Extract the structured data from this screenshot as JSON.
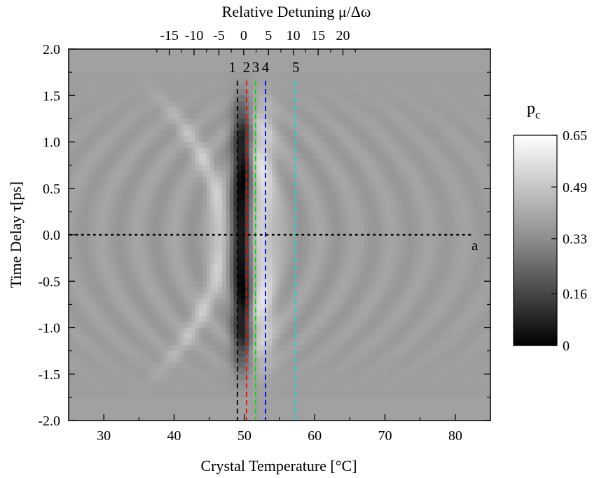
{
  "chart_data": {
    "type": "heatmap",
    "xlabel": "Crystal Temperature [°C]",
    "x2label": "Relative Detuning μ/Δω",
    "ylabel": "Time Delay τ[ps]",
    "xlim": [
      25,
      85
    ],
    "ylim": [
      -2.0,
      2.0
    ],
    "x_ticks": [
      "30",
      "40",
      "50",
      "60",
      "70",
      "80"
    ],
    "x_tick_values": [
      30,
      40,
      50,
      60,
      70,
      80
    ],
    "x2_ticks": [
      "-15",
      "-10",
      "-5",
      "0",
      "5",
      "10",
      "15",
      "20"
    ],
    "x2_tick_values": [
      -15,
      -10,
      -5,
      0,
      5,
      10,
      15,
      20
    ],
    "x2_map": {
      "temp_at_zero": 49.9,
      "temp_per_unit": 0.706
    },
    "y_ticks": [
      "2.0",
      "1.5",
      "1.0",
      "0.5",
      "0.0",
      "-0.5",
      "-1.0",
      "-1.5",
      "-2.0"
    ],
    "y_tick_values": [
      2.0,
      1.5,
      1.0,
      0.5,
      0.0,
      -0.5,
      -1.0,
      -1.5,
      -2.0
    ],
    "grid": false,
    "colorbar": {
      "title": "p",
      "title_sub": "c",
      "min": 0,
      "max": 0.65,
      "ticks": [
        "0.65",
        "0.49",
        "0.33",
        "0.16",
        "0"
      ],
      "tick_values": [
        0.65,
        0.49,
        0.33,
        0.16,
        0
      ],
      "colormap": "grayscale",
      "low_color": "#000000",
      "high_color": "#ffffff"
    },
    "vertical_lines": [
      {
        "label": "1",
        "temperature": 49.0,
        "color": "#000000"
      },
      {
        "label": "2",
        "temperature": 50.3,
        "color": "#ff0000"
      },
      {
        "label": "3",
        "temperature": 51.6,
        "color": "#00dd00"
      },
      {
        "label": "4",
        "temperature": 53.0,
        "color": "#0000ff"
      },
      {
        "label": "5",
        "temperature": 57.3,
        "color": "#00e0e0"
      }
    ],
    "horizontal_line": {
      "label": "a",
      "time_delay": 0.0,
      "color": "#000000"
    }
  }
}
